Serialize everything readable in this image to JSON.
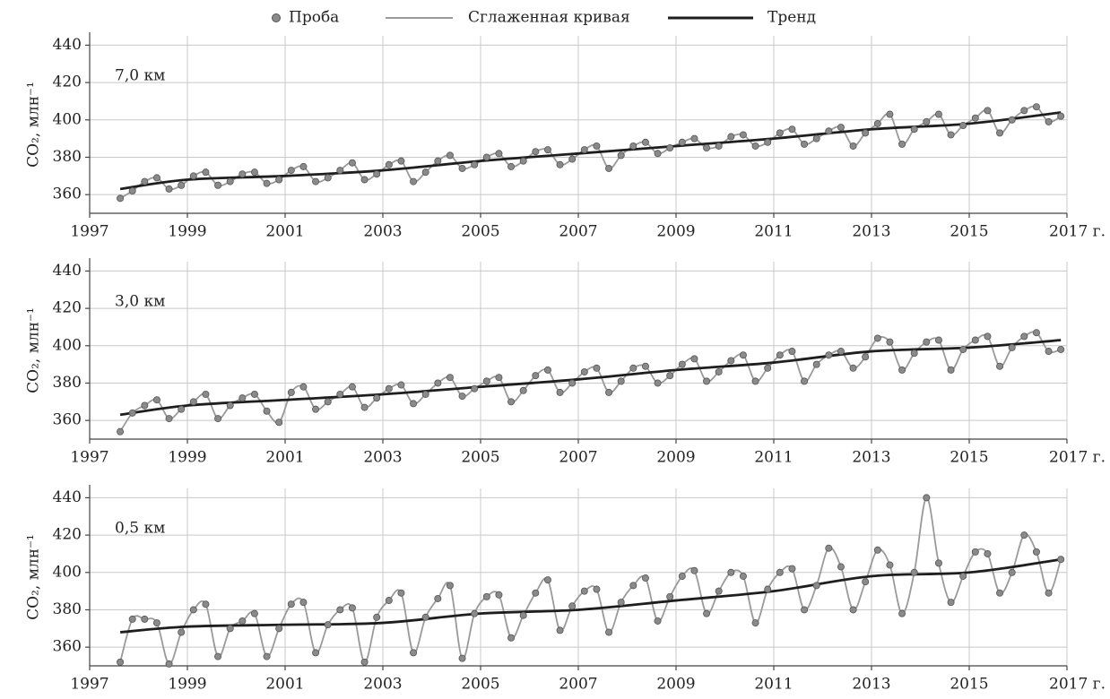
{
  "chart_data": [
    {
      "type": "line",
      "annotation": "7,0 км",
      "y_label": "CO₂, млн⁻¹",
      "xlim": [
        1997,
        2017
      ],
      "xticks": [
        1997,
        1999,
        2001,
        2003,
        2005,
        2007,
        2009,
        2011,
        2013,
        2015,
        {
          "value": 2017,
          "label": "2017 г."
        }
      ],
      "ylim": [
        350,
        445
      ],
      "yticks": [
        360,
        380,
        400,
        420,
        440
      ],
      "grid": true,
      "x": [
        1997.625,
        1997.875,
        1998.125,
        1998.375,
        1998.625,
        1998.875,
        1999.125,
        1999.375,
        1999.625,
        1999.875,
        2000.125,
        2000.375,
        2000.625,
        2000.875,
        2001.125,
        2001.375,
        2001.625,
        2001.875,
        2002.125,
        2002.375,
        2002.625,
        2002.875,
        2003.125,
        2003.375,
        2003.625,
        2003.875,
        2004.125,
        2004.375,
        2004.625,
        2004.875,
        2005.125,
        2005.375,
        2005.625,
        2005.875,
        2006.125,
        2006.375,
        2006.625,
        2006.875,
        2007.125,
        2007.375,
        2007.625,
        2007.875,
        2008.125,
        2008.375,
        2008.625,
        2008.875,
        2009.125,
        2009.375,
        2009.625,
        2009.875,
        2010.125,
        2010.375,
        2010.625,
        2010.875,
        2011.125,
        2011.375,
        2011.625,
        2011.875,
        2012.125,
        2012.375,
        2012.625,
        2012.875,
        2013.125,
        2013.375,
        2013.625,
        2013.875,
        2014.125,
        2014.375,
        2014.625,
        2014.875,
        2015.125,
        2015.375,
        2015.625,
        2015.875,
        2016.125,
        2016.375,
        2016.625,
        2016.875
      ],
      "series": [
        {
          "name": "Проба",
          "color": "#8a8a8a",
          "marker": "circle",
          "values": [
            358,
            362,
            367,
            369,
            363,
            365,
            370,
            372,
            365,
            367,
            371,
            372,
            366,
            368,
            373,
            375,
            367,
            369,
            373,
            377,
            368,
            371,
            376,
            378,
            367,
            372,
            378,
            381,
            374,
            376,
            380,
            382,
            375,
            378,
            383,
            384,
            376,
            379,
            384,
            386,
            374,
            381,
            386,
            388,
            382,
            385,
            388,
            390,
            385,
            386,
            391,
            392,
            386,
            388,
            393,
            395,
            387,
            390,
            394,
            396,
            386,
            393,
            398,
            403,
            387,
            395,
            399,
            403,
            392,
            397,
            401,
            405,
            393,
            400,
            405,
            407,
            399,
            402
          ]
        },
        {
          "name": "Сглаженная кривая",
          "color": "#9a9a9a",
          "values": [
            358,
            362,
            367,
            369,
            363,
            365,
            370,
            372,
            365,
            367,
            371,
            372,
            366,
            368,
            373,
            375,
            367,
            369,
            373,
            377,
            368,
            371,
            376,
            378,
            367,
            372,
            378,
            381,
            374,
            376,
            380,
            382,
            375,
            378,
            383,
            384,
            376,
            379,
            384,
            386,
            374,
            381,
            386,
            388,
            382,
            385,
            388,
            390,
            385,
            386,
            391,
            392,
            386,
            388,
            393,
            395,
            387,
            390,
            394,
            396,
            386,
            393,
            398,
            403,
            387,
            395,
            399,
            403,
            392,
            397,
            401,
            405,
            393,
            400,
            405,
            407,
            399,
            402
          ]
        },
        {
          "name": "Тренд",
          "color": "#1e1e1e",
          "x": [
            1997.625,
            1999,
            2001,
            2003,
            2005,
            2007,
            2009,
            2011,
            2013,
            2015,
            2016.875
          ],
          "values": [
            363,
            368,
            370,
            373,
            378,
            382,
            386,
            390,
            395,
            398,
            404
          ]
        }
      ]
    },
    {
      "type": "line",
      "annotation": "3,0 км",
      "y_label": "CO₂, млн⁻¹",
      "xlim": [
        1997,
        2017
      ],
      "xticks": [
        1997,
        1999,
        2001,
        2003,
        2005,
        2007,
        2009,
        2011,
        2013,
        2015,
        {
          "value": 2017,
          "label": "2017 г."
        }
      ],
      "ylim": [
        350,
        445
      ],
      "yticks": [
        360,
        380,
        400,
        420,
        440
      ],
      "grid": true,
      "x": [
        1997.625,
        1997.875,
        1998.125,
        1998.375,
        1998.625,
        1998.875,
        1999.125,
        1999.375,
        1999.625,
        1999.875,
        2000.125,
        2000.375,
        2000.625,
        2000.875,
        2001.125,
        2001.375,
        2001.625,
        2001.875,
        2002.125,
        2002.375,
        2002.625,
        2002.875,
        2003.125,
        2003.375,
        2003.625,
        2003.875,
        2004.125,
        2004.375,
        2004.625,
        2004.875,
        2005.125,
        2005.375,
        2005.625,
        2005.875,
        2006.125,
        2006.375,
        2006.625,
        2006.875,
        2007.125,
        2007.375,
        2007.625,
        2007.875,
        2008.125,
        2008.375,
        2008.625,
        2008.875,
        2009.125,
        2009.375,
        2009.625,
        2009.875,
        2010.125,
        2010.375,
        2010.625,
        2010.875,
        2011.125,
        2011.375,
        2011.625,
        2011.875,
        2012.125,
        2012.375,
        2012.625,
        2012.875,
        2013.125,
        2013.375,
        2013.625,
        2013.875,
        2014.125,
        2014.375,
        2014.625,
        2014.875,
        2015.125,
        2015.375,
        2015.625,
        2015.875,
        2016.125,
        2016.375,
        2016.625,
        2016.875
      ],
      "series": [
        {
          "color": "#8a8a8a",
          "marker": "circle",
          "values": [
            354,
            364,
            368,
            371,
            361,
            366,
            370,
            374,
            361,
            368,
            372,
            374,
            365,
            359,
            375,
            378,
            366,
            370,
            374,
            378,
            367,
            372,
            377,
            379,
            369,
            374,
            380,
            383,
            373,
            377,
            381,
            383,
            370,
            376,
            384,
            387,
            375,
            380,
            386,
            388,
            375,
            381,
            388,
            389,
            380,
            384,
            390,
            393,
            381,
            386,
            392,
            395,
            381,
            388,
            395,
            397,
            381,
            390,
            395,
            397,
            388,
            394,
            404,
            402,
            387,
            396,
            402,
            403,
            387,
            398,
            403,
            405,
            389,
            399,
            405,
            407,
            397,
            398
          ]
        },
        {
          "color": "#9a9a9a",
          "values": [
            354,
            364,
            368,
            371,
            361,
            366,
            370,
            374,
            361,
            368,
            372,
            374,
            365,
            359,
            375,
            378,
            366,
            370,
            374,
            378,
            367,
            372,
            377,
            379,
            369,
            374,
            380,
            383,
            373,
            377,
            381,
            383,
            370,
            376,
            384,
            387,
            375,
            380,
            386,
            388,
            375,
            381,
            388,
            389,
            380,
            384,
            390,
            393,
            381,
            386,
            392,
            395,
            381,
            388,
            395,
            397,
            381,
            390,
            395,
            397,
            388,
            394,
            404,
            402,
            387,
            396,
            402,
            403,
            387,
            398,
            403,
            405,
            389,
            399,
            405,
            407,
            397,
            398
          ]
        },
        {
          "color": "#1e1e1e",
          "x": [
            1997.625,
            1999,
            2001,
            2003,
            2005,
            2007,
            2009,
            2011,
            2013,
            2015,
            2016.875
          ],
          "values": [
            363,
            368,
            371,
            374,
            378,
            382,
            387,
            391,
            397,
            399,
            403
          ]
        }
      ]
    },
    {
      "type": "line",
      "annotation": "0,5 км",
      "y_label": "CO₂, млн⁻¹",
      "xlim": [
        1997,
        2017
      ],
      "xticks": [
        1997,
        1999,
        2001,
        2003,
        2005,
        2007,
        2009,
        2011,
        2013,
        2015,
        {
          "value": 2017,
          "label": "2017 г."
        }
      ],
      "ylim": [
        350,
        445
      ],
      "yticks": [
        360,
        380,
        400,
        420,
        440
      ],
      "grid": true,
      "x": [
        1997.625,
        1997.875,
        1998.125,
        1998.375,
        1998.625,
        1998.875,
        1999.125,
        1999.375,
        1999.625,
        1999.875,
        2000.125,
        2000.375,
        2000.625,
        2000.875,
        2001.125,
        2001.375,
        2001.625,
        2001.875,
        2002.125,
        2002.375,
        2002.625,
        2002.875,
        2003.125,
        2003.375,
        2003.625,
        2003.875,
        2004.125,
        2004.375,
        2004.625,
        2004.875,
        2005.125,
        2005.375,
        2005.625,
        2005.875,
        2006.125,
        2006.375,
        2006.625,
        2006.875,
        2007.125,
        2007.375,
        2007.625,
        2007.875,
        2008.125,
        2008.375,
        2008.625,
        2008.875,
        2009.125,
        2009.375,
        2009.625,
        2009.875,
        2010.125,
        2010.375,
        2010.625,
        2010.875,
        2011.125,
        2011.375,
        2011.625,
        2011.875,
        2012.125,
        2012.375,
        2012.625,
        2012.875,
        2013.125,
        2013.375,
        2013.625,
        2013.875,
        2014.125,
        2014.375,
        2014.625,
        2014.875,
        2015.125,
        2015.375,
        2015.625,
        2015.875,
        2016.125,
        2016.375,
        2016.625,
        2016.875
      ],
      "series": [
        {
          "color": "#8a8a8a",
          "marker": "circle",
          "values": [
            352,
            375,
            375,
            373,
            351,
            368,
            380,
            383,
            355,
            370,
            374,
            378,
            355,
            370,
            383,
            384,
            357,
            372,
            380,
            381,
            352,
            376,
            385,
            389,
            357,
            376,
            386,
            393,
            354,
            378,
            387,
            388,
            365,
            377,
            389,
            396,
            369,
            382,
            390,
            391,
            368,
            384,
            393,
            397,
            374,
            387,
            398,
            401,
            378,
            390,
            400,
            398,
            373,
            391,
            400,
            402,
            380,
            393,
            413,
            403,
            380,
            395,
            412,
            404,
            378,
            400,
            440,
            405,
            384,
            398,
            411,
            410,
            389,
            400,
            420,
            411,
            389,
            407
          ]
        },
        {
          "color": "#9a9a9a",
          "values": [
            352,
            375,
            375,
            373,
            351,
            368,
            380,
            383,
            355,
            370,
            374,
            378,
            355,
            370,
            383,
            384,
            357,
            372,
            380,
            381,
            352,
            376,
            385,
            389,
            357,
            376,
            386,
            393,
            354,
            378,
            387,
            388,
            365,
            377,
            389,
            396,
            369,
            382,
            390,
            391,
            368,
            384,
            393,
            397,
            374,
            387,
            398,
            401,
            378,
            390,
            400,
            398,
            373,
            391,
            400,
            402,
            380,
            393,
            413,
            403,
            380,
            395,
            412,
            404,
            378,
            400,
            440,
            405,
            384,
            398,
            411,
            410,
            389,
            400,
            420,
            411,
            389,
            407
          ]
        },
        {
          "color": "#1e1e1e",
          "x": [
            1997.625,
            1999,
            2001,
            2003,
            2005,
            2007,
            2009,
            2011,
            2013,
            2015,
            2016.875
          ],
          "values": [
            368,
            371,
            372,
            373,
            378,
            380,
            385,
            390,
            398,
            400,
            407
          ]
        }
      ]
    }
  ]
}
